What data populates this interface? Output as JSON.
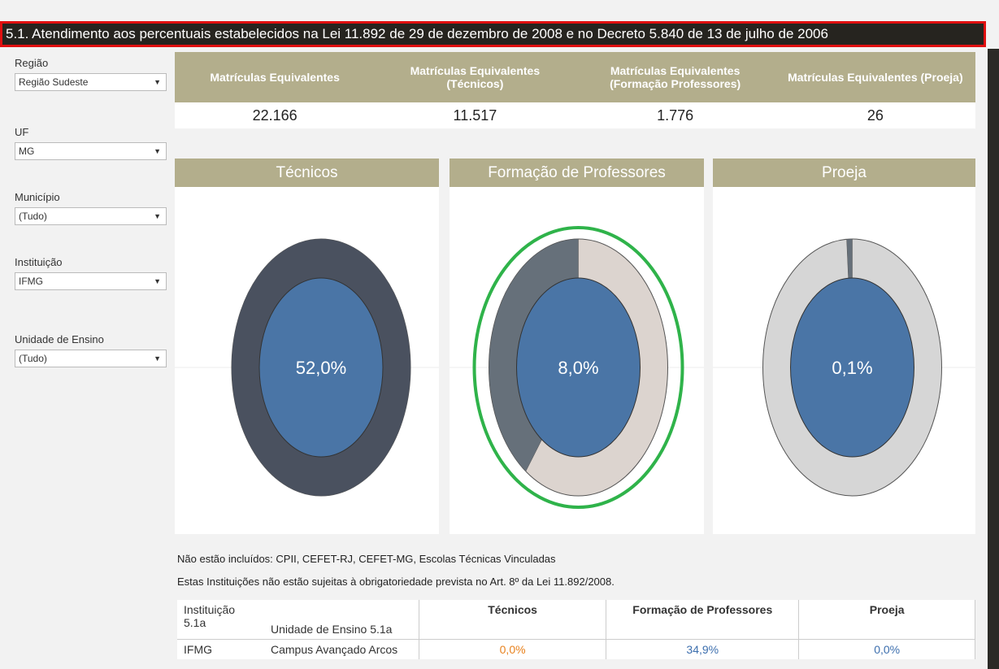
{
  "header": {
    "title": "5.1. Atendimento aos percentuais estabelecidos na Lei 11.892 de 29 de dezembro de 2008 e no Decreto 5.840 de 13 de julho de 2006"
  },
  "filters": [
    {
      "label": "Região",
      "value": "Região Sudeste"
    },
    {
      "label": "UF",
      "value": "MG"
    },
    {
      "label": "Município",
      "value": "(Tudo)"
    },
    {
      "label": "Instituição",
      "value": "IFMG"
    },
    {
      "label": "Unidade de Ensino",
      "value": "(Tudo)"
    }
  ],
  "kpis": [
    {
      "label": "Matrículas Equivalentes",
      "value": "22.166"
    },
    {
      "label": "Matrículas Equivalentes (Técnicos)",
      "value": "11.517"
    },
    {
      "label": "Matrículas Equivalentes (Formação Professores)",
      "value": "1.776"
    },
    {
      "label": "Matrículas Equivalentes (Proeja)",
      "value": "26"
    }
  ],
  "donuts": [
    {
      "title": "Técnicos",
      "label": "52,0%",
      "arc": 100,
      "colors": [
        "#4a515f",
        "#4a515f"
      ]
    },
    {
      "title": "Formação de Professores",
      "label": "8,0%",
      "arc": 40,
      "colors": [
        "#66707a",
        "#dcd4cf"
      ]
    },
    {
      "title": "Proeja",
      "label": "0,1%",
      "arc": 1,
      "colors": [
        "#66707a",
        "#d6d6d6"
      ]
    }
  ],
  "notes": [
    "Não estão incluídos: CPII, CEFET-RJ, CEFET-MG, Escolas Técnicas Vinculadas",
    "Estas Instituições não estão sujeitas à obrigatoriedade prevista no Art. 8º da Lei 11.892/2008."
  ],
  "table": {
    "headers": [
      "Instituição 5.1a",
      "Unidade de Ensino 5.1a",
      "Técnicos",
      "Formação de Professores",
      "Proeja"
    ],
    "rows": [
      [
        "IFMG",
        "Campus Avançado Arcos",
        "0,0%",
        "34,9%",
        "0,0%"
      ]
    ]
  }
}
